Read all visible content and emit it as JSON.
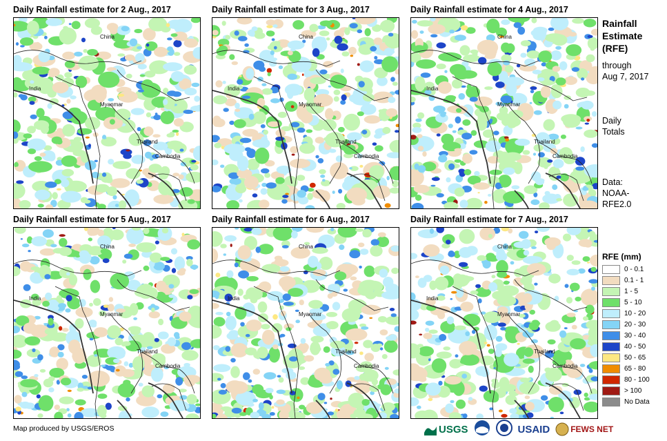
{
  "panels": [
    {
      "title": "Daily Rainfall estimate for 2 Aug., 2017",
      "seed": 2
    },
    {
      "title": "Daily Rainfall estimate for 3 Aug., 2017",
      "seed": 3
    },
    {
      "title": "Daily Rainfall estimate for 4 Aug., 2017",
      "seed": 4
    },
    {
      "title": "Daily Rainfall estimate for 5 Aug., 2017",
      "seed": 5
    },
    {
      "title": "Daily Rainfall estimate for 6 Aug., 2017",
      "seed": 6
    },
    {
      "title": "Daily Rainfall estimate for 7 Aug., 2017",
      "seed": 7
    }
  ],
  "map_labels": {
    "china": "China",
    "india": "India",
    "myanmar": "Myanmar",
    "thailand": "Thailand",
    "cambodia": "Cambodia"
  },
  "side": {
    "title_line1": "Rainfall",
    "title_line2": "Estimate",
    "title_line3": "(RFE)",
    "through": "through",
    "through_date": "Aug 7, 2017",
    "daily": "Daily",
    "totals": "Totals",
    "data_label": "Data:",
    "data_source1": "NOAA-",
    "data_source2": "RFE2.0"
  },
  "legend": {
    "title": "RFE (mm)",
    "items": [
      {
        "label": "0 - 0.1",
        "color": "#ffffff"
      },
      {
        "label": "0.1 - 1",
        "color": "#f2dcc0"
      },
      {
        "label": "1 - 5",
        "color": "#c4f5b4"
      },
      {
        "label": "5 - 10",
        "color": "#6fe06a"
      },
      {
        "label": "10 - 20",
        "color": "#bfeefc"
      },
      {
        "label": "20 - 30",
        "color": "#84d4f6"
      },
      {
        "label": "30 - 40",
        "color": "#3f8ee8"
      },
      {
        "label": "40 - 50",
        "color": "#1d45c8"
      },
      {
        "label": "50 - 65",
        "color": "#fde882"
      },
      {
        "label": "65 - 80",
        "color": "#f08c00"
      },
      {
        "label": "80 - 100",
        "color": "#d02800"
      },
      {
        "label": "> 100",
        "color": "#a01a14"
      },
      {
        "label": "No Data",
        "color": "#8c8c8c"
      }
    ]
  },
  "credit": "Map produced by USGS/EROS",
  "logos": {
    "usgs": "USGS",
    "usaid": "USAID",
    "fewsnet": "FEWS NET"
  }
}
